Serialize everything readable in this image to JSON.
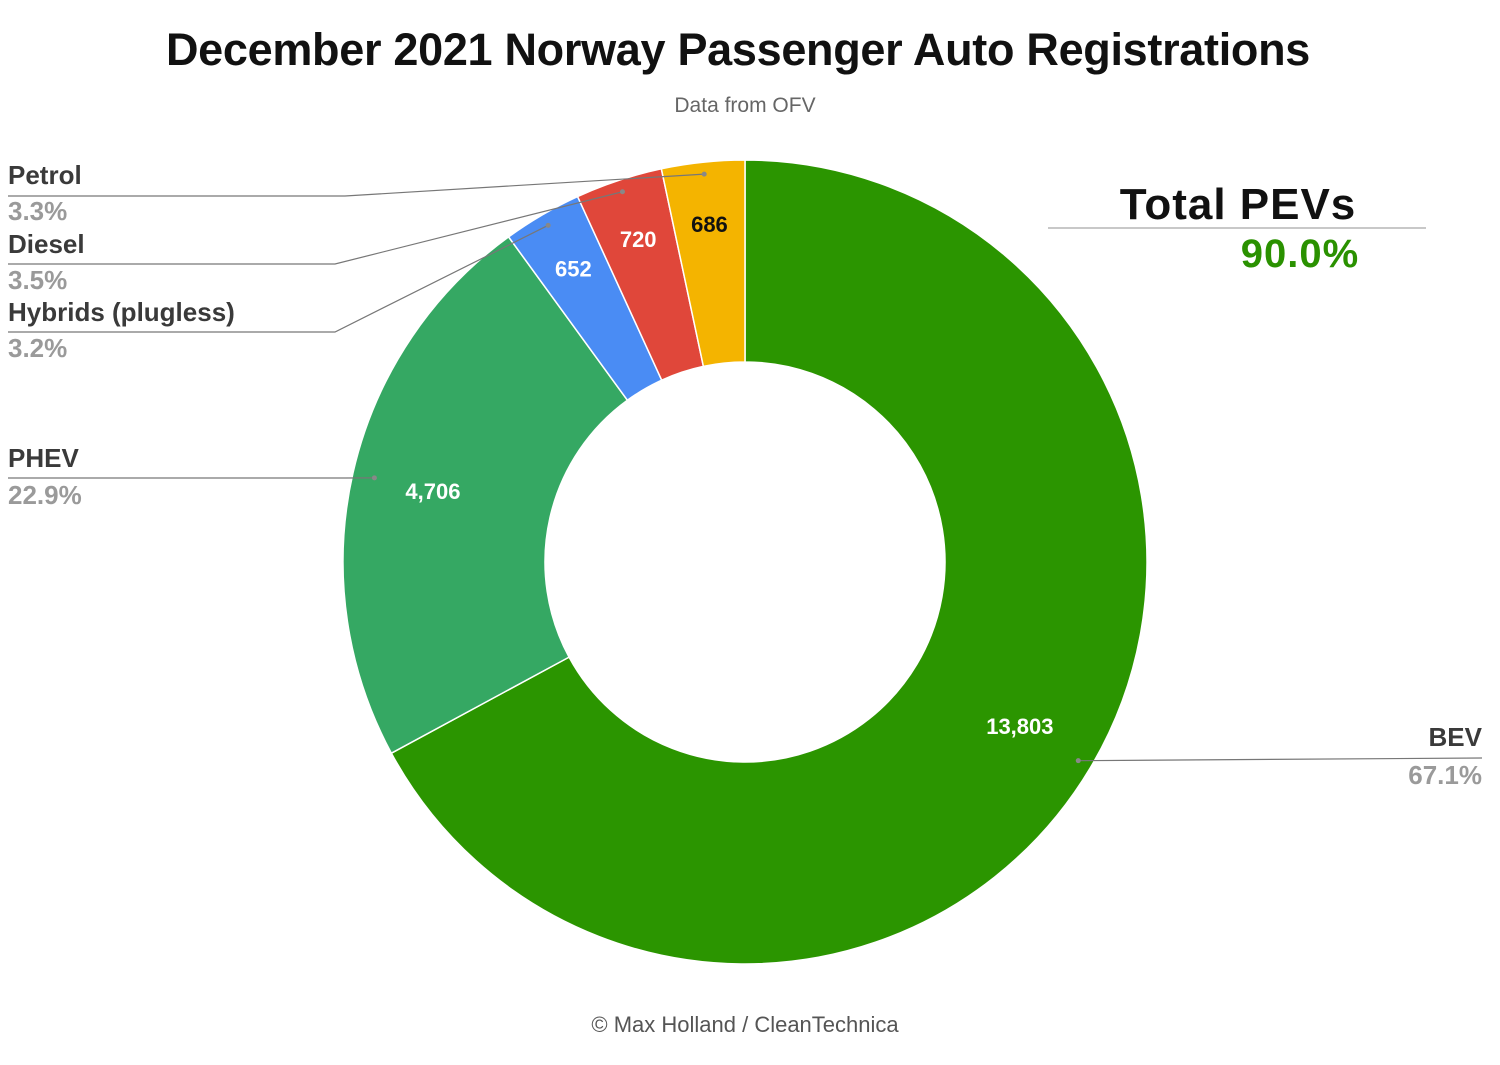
{
  "title": "December 2021 Norway Passenger Auto Registrations",
  "subtitle": "Data from OFV",
  "footer": "© Max Holland / CleanTechnica",
  "total": {
    "label": "Total PEVs",
    "value": "90.0%"
  },
  "colors": {
    "BEV": "#2b9500",
    "PHEV": "#35a863",
    "Hybrids (plugless)": "#4a8cf4",
    "Diesel": "#e0473a",
    "Petrol": "#f4b400",
    "accent_green": "#2a9100"
  },
  "chart_data": {
    "type": "pie",
    "style": "donut",
    "slices": [
      {
        "label": "BEV",
        "value": 13803,
        "value_label": "13,803",
        "percent_label": "67.1%"
      },
      {
        "label": "PHEV",
        "value": 4706,
        "value_label": "4,706",
        "percent_label": "22.9%"
      },
      {
        "label": "Hybrids (plugless)",
        "value": 652,
        "value_label": "652",
        "percent_label": "3.2%"
      },
      {
        "label": "Diesel",
        "value": 720,
        "value_label": "720",
        "percent_label": "3.5%"
      },
      {
        "label": "Petrol",
        "value": 686,
        "value_label": "686",
        "percent_label": "3.3%"
      }
    ]
  }
}
